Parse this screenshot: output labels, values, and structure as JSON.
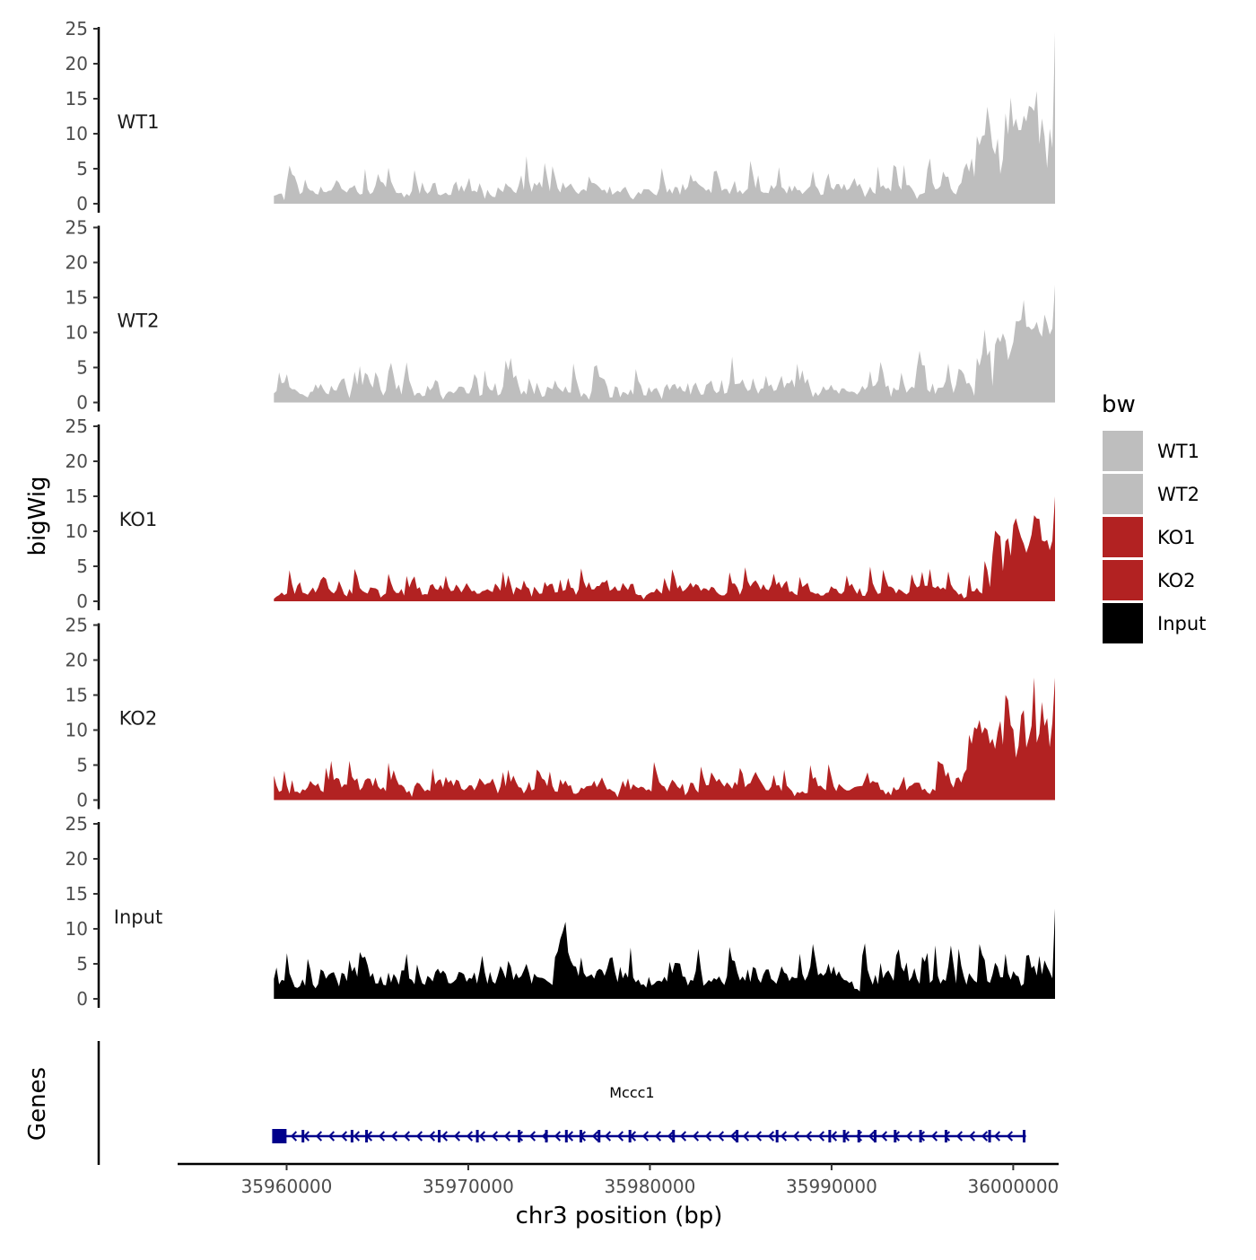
{
  "chart_data": {
    "type": "area",
    "ylabel": "bigWig",
    "genes_label": "Genes",
    "xlabel": "chr3 position (bp)",
    "xlim": [
      35954000,
      36002500
    ],
    "region": [
      35959300,
      36002300
    ],
    "x_ticks": [
      35960000,
      35970000,
      35980000,
      35990000,
      36000000
    ],
    "x_tick_labels": [
      "35960000",
      "35970000",
      "35980000",
      "35990000",
      "36000000"
    ],
    "ylim": [
      0,
      25
    ],
    "y_ticks": [
      0,
      5,
      10,
      15,
      20,
      25
    ],
    "y_tick_labels": [
      "0",
      "5",
      "10",
      "15",
      "20",
      "25"
    ],
    "legend": {
      "title": "bw",
      "entries": [
        {
          "label": "WT1",
          "color": "#bebebe"
        },
        {
          "label": "WT2",
          "color": "#bebebe"
        },
        {
          "label": "KO1",
          "color": "#b22222"
        },
        {
          "label": "KO2",
          "color": "#b22222"
        },
        {
          "label": "Input",
          "color": "#000000"
        }
      ]
    },
    "series": [
      {
        "name": "WT1",
        "color": "#bebebe",
        "seed": 11,
        "base": 1.4,
        "amp": 3.2,
        "spike_prob": 0.11,
        "spike_amp": 4.5,
        "peak_region": [
          35998000,
          36002300
        ],
        "peak_base": 7,
        "peak_amp": 9,
        "max_value": 24.5
      },
      {
        "name": "WT2",
        "color": "#bebebe",
        "seed": 23,
        "base": 1.5,
        "amp": 3.4,
        "spike_prob": 0.12,
        "spike_amp": 4.2,
        "peak_region": [
          35998000,
          36002300
        ],
        "peak_base": 5,
        "peak_amp": 8,
        "max_value": 16.8
      },
      {
        "name": "KO1",
        "color": "#b22222",
        "seed": 37,
        "base": 1.3,
        "amp": 2.6,
        "spike_prob": 0.1,
        "spike_amp": 4.0,
        "peak_region": [
          35998300,
          36002300
        ],
        "peak_base": 7,
        "peak_amp": 7,
        "max_value": 15.0
      },
      {
        "name": "KO2",
        "color": "#b22222",
        "seed": 53,
        "base": 1.6,
        "amp": 3.0,
        "spike_prob": 0.12,
        "spike_amp": 4.0,
        "peak_region": [
          35997300,
          36002300
        ],
        "peak_base": 6,
        "peak_amp": 9,
        "max_value": 17.5
      },
      {
        "name": "Input",
        "color": "#000000",
        "seed": 71,
        "base": 2.4,
        "amp": 4.0,
        "spike_prob": 0.16,
        "spike_amp": 5.0,
        "peak_region": [
          35975000,
          35975600
        ],
        "peak_base": 4,
        "peak_amp": 8,
        "max_value": 12.9
      }
    ],
    "gene": {
      "name": "Mccc1",
      "start": 35959300,
      "end": 36000700,
      "strand": "-",
      "color": "#00008b",
      "exons": [
        35959600,
        35960900,
        35963600,
        35964400,
        35968400,
        35970500,
        35972800,
        35974300,
        35975400,
        35976200,
        35977200,
        35978900,
        35981300,
        35984800,
        35987000,
        35989900,
        35990700,
        35991500,
        35992400,
        35993500,
        35994900,
        35996300,
        35998700,
        36000600
      ]
    }
  }
}
